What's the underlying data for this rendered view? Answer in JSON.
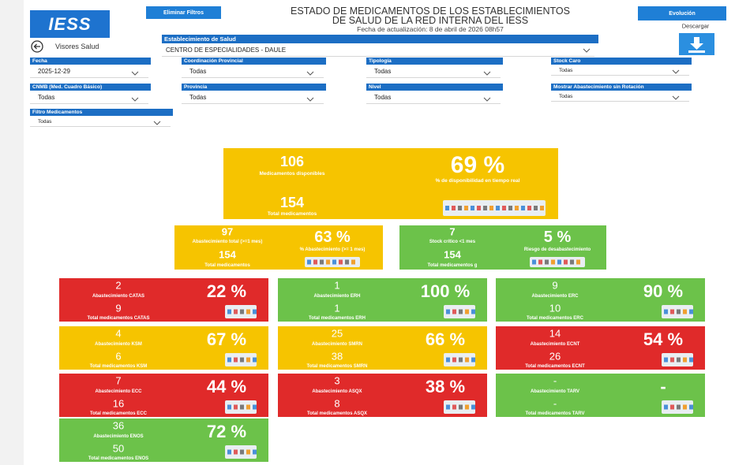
{
  "header": {
    "logo": "IESS",
    "clear_filters": "Eliminar Filtros",
    "title_lines": [
      "ESTADO DE MEDICAMENTOS DE LOS ESTABLECIMIENTOS",
      "DE SALUD DE LA RED INTERNA DEL IESS"
    ],
    "updated": "Fecha de actualización: 8 de abril de 2026 08h57",
    "evolution": "Evolución",
    "download": "Descargar"
  },
  "nav": {
    "back": "Visores Salud"
  },
  "establishment": {
    "label": "Establecimiento de Salud",
    "value": "CENTRO DE ESPECIALIDADES - DAULE"
  },
  "filters": [
    {
      "label": "Fecha",
      "value": "2025-12-29"
    },
    {
      "label": "Coordinación Provincial",
      "value": "Todas"
    },
    {
      "label": "Tipología",
      "value": "Todas"
    },
    {
      "label": "Stock Caro",
      "value": "Todas"
    },
    {
      "label": "CNMB (Med. Cuadro Básico)",
      "value": "Todas"
    },
    {
      "label": "Provincia",
      "value": "Todas"
    },
    {
      "label": "Nivel",
      "value": "Todas"
    },
    {
      "label": "Mostrar Abastecimiento sin Rotación",
      "value": "Todas"
    },
    {
      "label": "Filtro Medicamentos",
      "value": "Todas"
    }
  ],
  "summary": {
    "color": "#f6c400",
    "count": "106",
    "count_label": "Medicamentos disponibles",
    "percent": "69 %",
    "percent_label": "% de disponibilidad en tiempo real",
    "total": "154",
    "total_label": "Total medicamentos"
  },
  "supply": [
    {
      "color": "#f6c400",
      "count": "97",
      "count_label": "Abastecimiento total (>=1 mes)",
      "percent": "63 %",
      "percent_label": "% Abastecimiento (>= 1 mes)",
      "total": "154",
      "total_label": "Total medicamentos"
    },
    {
      "color": "#6cc24a",
      "count": "7",
      "count_label": "Stock crítico <1 mes",
      "percent": "5 %",
      "percent_label": "Riesgo de desabastecimiento",
      "total": "154",
      "total_label": "Total medicamentos g"
    }
  ],
  "groups": [
    {
      "color": "#e02a2a",
      "count": "2",
      "count_label": "Abastecimiento CATAS",
      "total": "9",
      "total_label": "Total medicamentos CATAS",
      "percent": "22 %"
    },
    {
      "color": "#6cc24a",
      "count": "1",
      "count_label": "Abastecimiento ERH",
      "total": "1",
      "total_label": "Total medicamentos ERH",
      "percent": "100 %"
    },
    {
      "color": "#6cc24a",
      "count": "9",
      "count_label": "Abastecimiento ERC",
      "total": "10",
      "total_label": "Total medicamentos ERC",
      "percent": "90 %"
    },
    {
      "color": "#f6c400",
      "count": "4",
      "count_label": "Abastecimiento KSM",
      "total": "6",
      "total_label": "Total medicamentos KSM",
      "percent": "67 %"
    },
    {
      "color": "#f6c400",
      "count": "25",
      "count_label": "Abastecimiento SMRN",
      "total": "38",
      "total_label": "Total medicamentos SMRN",
      "percent": "66 %"
    },
    {
      "color": "#e02a2a",
      "count": "14",
      "count_label": "Abastecimiento ECNT",
      "total": "26",
      "total_label": "Total medicamentos ECNT",
      "percent": "54 %"
    },
    {
      "color": "#e02a2a",
      "count": "7",
      "count_label": "Abastecimiento ECC",
      "total": "16",
      "total_label": "Total medicamentos ECC",
      "percent": "44 %"
    },
    {
      "color": "#e02a2a",
      "count": "3",
      "count_label": "Abastecimiento ASQX",
      "total": "8",
      "total_label": "Total medicamentos ASQX",
      "percent": "38 %"
    },
    {
      "color": "#6cc24a",
      "count": "-",
      "count_label": "Abastecimiento TARV",
      "total": "-",
      "total_label": "Total medicamentos TARV",
      "percent": "-"
    },
    {
      "color": "#6cc24a",
      "count": "36",
      "count_label": "Abastecimiento ENOS",
      "total": "50",
      "total_label": "Total medicamentos ENOS",
      "percent": "72 %"
    }
  ]
}
